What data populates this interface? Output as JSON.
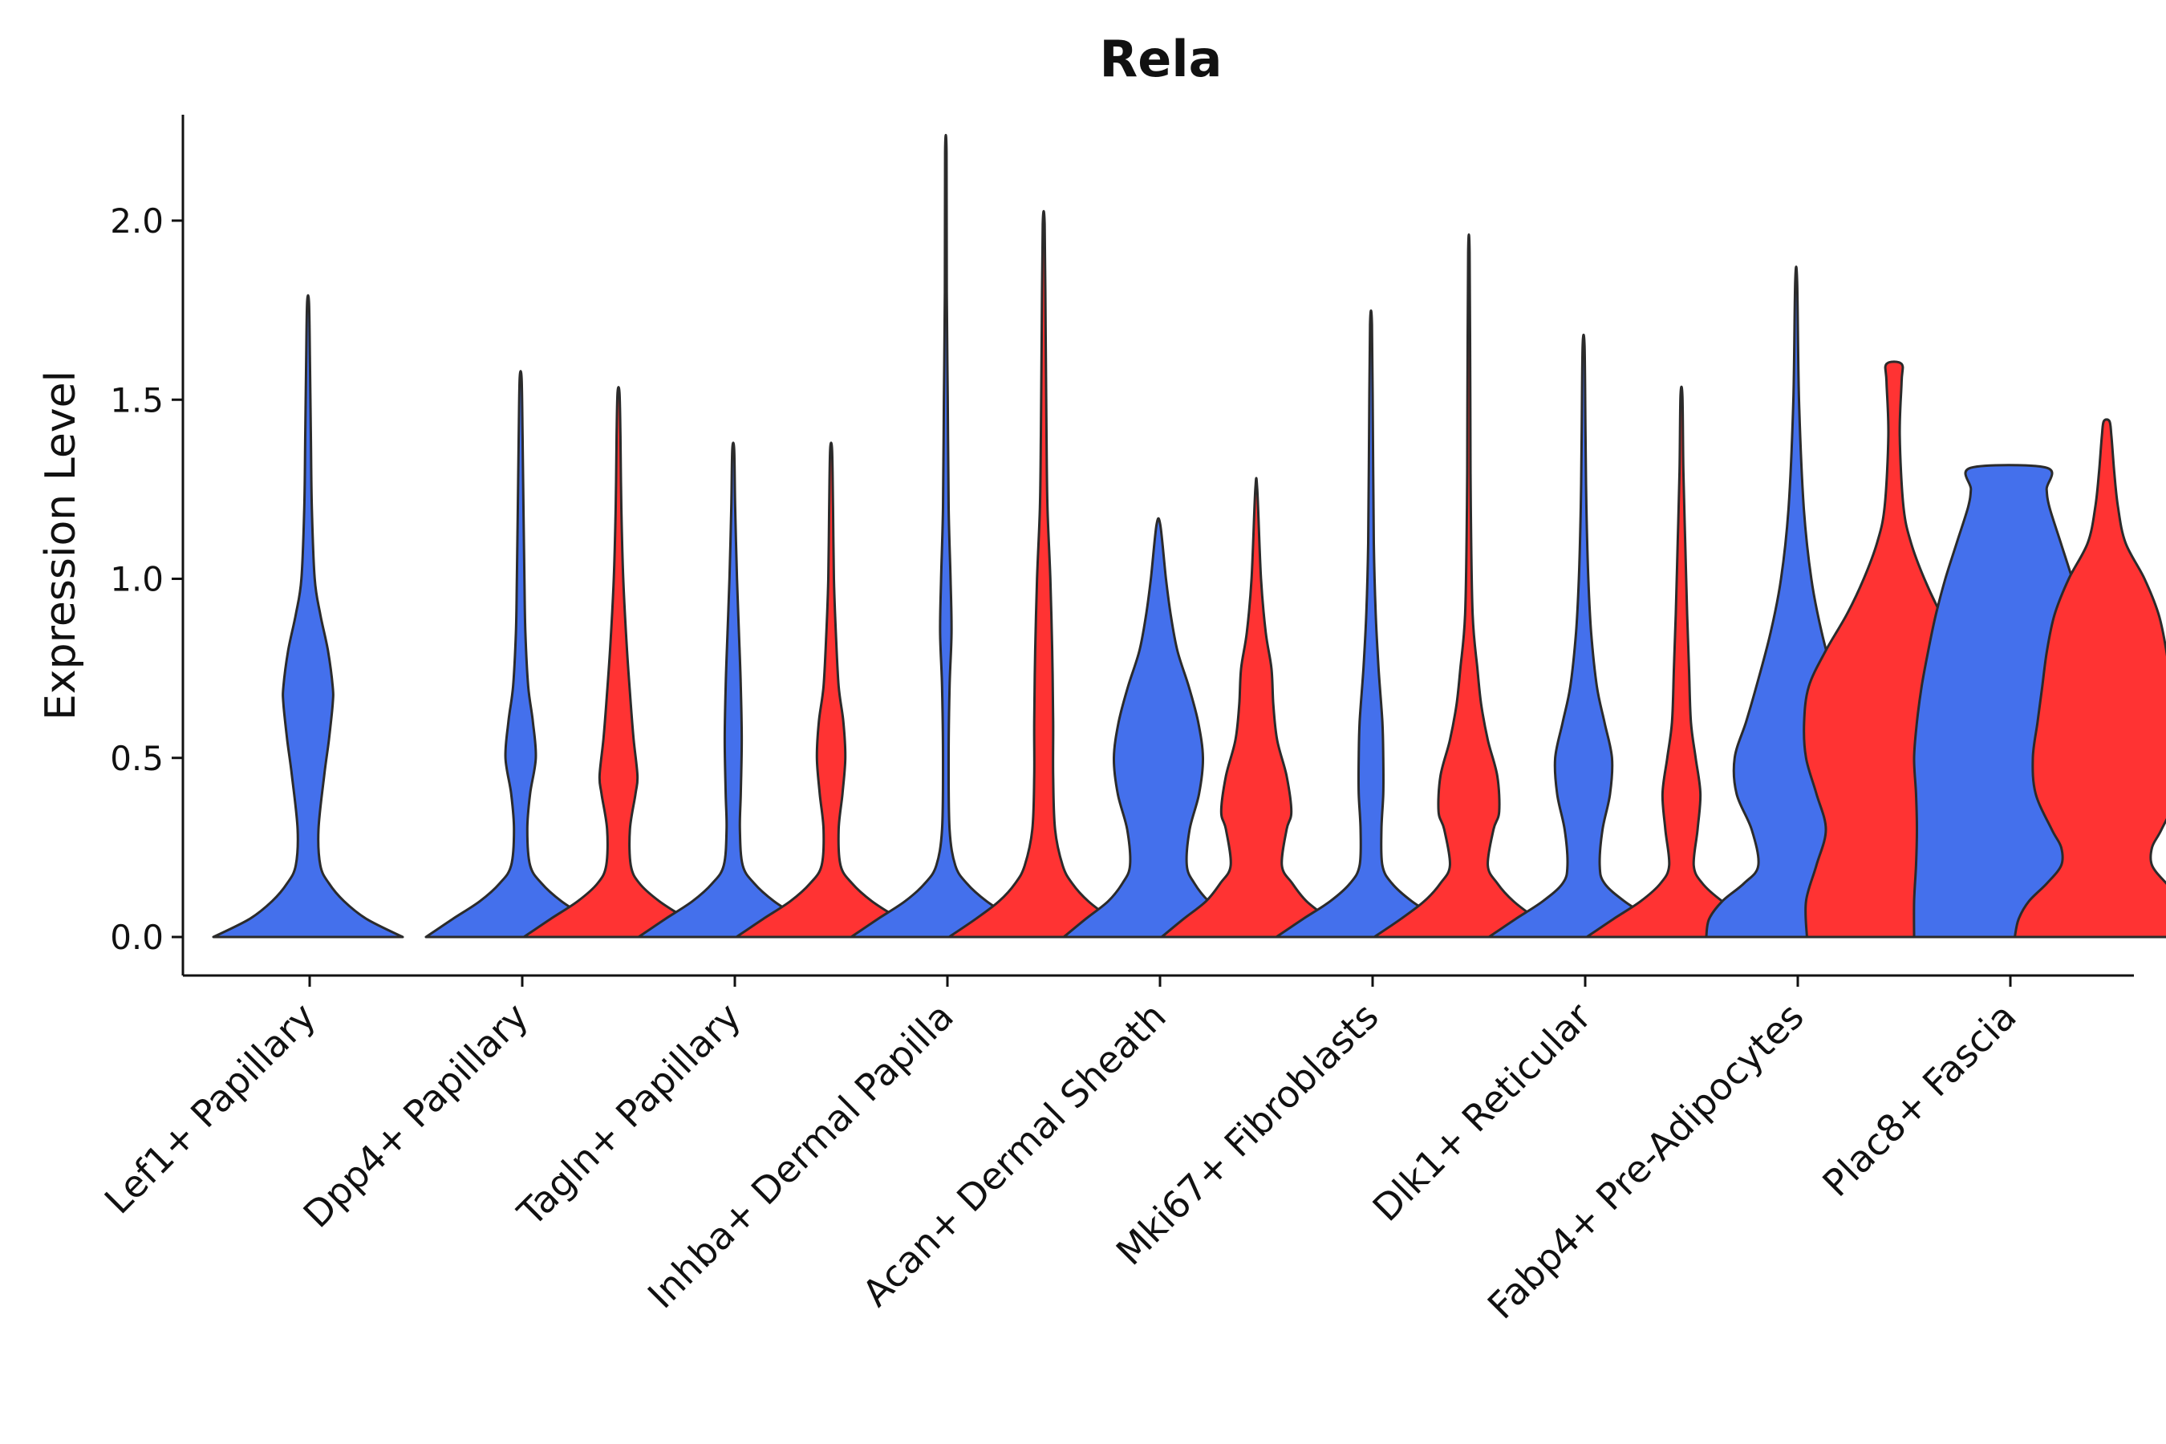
{
  "chart_data": {
    "type": "violin",
    "title": "Rela",
    "ylabel": "Expression Level",
    "xlabel": "",
    "ylim": [
      -0.11,
      2.3
    ],
    "yticks": [
      "0.0",
      "0.5",
      "1.0",
      "1.5",
      "2.0"
    ],
    "colors": {
      "group1": "#4470EC",
      "group2": "#FF3333"
    },
    "categories": [
      "Lef1+ Papillary",
      "Dpp4+ Papillary",
      "Tagln+ Papillary",
      "Inhba+ Dermal Papilla",
      "Acan+ Dermal Sheath",
      "Mki67+ Fibroblasts",
      "Dlk1+ Reticular",
      "Fabp4+ Pre-Adipocytes",
      "Plac8+ Fascia"
    ],
    "violins": [
      {
        "category": "Lef1+ Papillary",
        "group": "group1",
        "max": 1.77,
        "profile": [
          [
            0.0,
            1.0
          ],
          [
            0.05,
            0.62
          ],
          [
            0.1,
            0.38
          ],
          [
            0.15,
            0.22
          ],
          [
            0.2,
            0.13
          ],
          [
            0.3,
            0.11
          ],
          [
            0.45,
            0.17
          ],
          [
            0.55,
            0.22
          ],
          [
            0.65,
            0.26
          ],
          [
            0.7,
            0.26
          ],
          [
            0.8,
            0.21
          ],
          [
            0.9,
            0.13
          ],
          [
            1.0,
            0.07
          ],
          [
            1.2,
            0.04
          ],
          [
            1.4,
            0.03
          ],
          [
            1.6,
            0.02
          ],
          [
            1.77,
            0.01
          ]
        ]
      },
      {
        "category": "Dpp4+ Papillary",
        "group": "group1",
        "max": 1.56,
        "profile": [
          [
            0.0,
            1.0
          ],
          [
            0.05,
            0.72
          ],
          [
            0.1,
            0.43
          ],
          [
            0.15,
            0.22
          ],
          [
            0.2,
            0.1
          ],
          [
            0.3,
            0.07
          ],
          [
            0.4,
            0.1
          ],
          [
            0.5,
            0.16
          ],
          [
            0.6,
            0.13
          ],
          [
            0.7,
            0.08
          ],
          [
            0.85,
            0.05
          ],
          [
            1.0,
            0.04
          ],
          [
            1.2,
            0.03
          ],
          [
            1.4,
            0.02
          ],
          [
            1.56,
            0.01
          ]
        ]
      },
      {
        "category": "Dpp4+ Papillary",
        "group": "group2",
        "max": 1.52,
        "profile": [
          [
            0.0,
            1.0
          ],
          [
            0.05,
            0.72
          ],
          [
            0.1,
            0.43
          ],
          [
            0.15,
            0.22
          ],
          [
            0.2,
            0.13
          ],
          [
            0.3,
            0.12
          ],
          [
            0.4,
            0.18
          ],
          [
            0.45,
            0.2
          ],
          [
            0.55,
            0.16
          ],
          [
            0.65,
            0.13
          ],
          [
            0.8,
            0.09
          ],
          [
            1.0,
            0.05
          ],
          [
            1.2,
            0.03
          ],
          [
            1.4,
            0.02
          ],
          [
            1.52,
            0.01
          ]
        ]
      },
      {
        "category": "Tagln+ Papillary",
        "group": "group1",
        "max": 1.36,
        "profile": [
          [
            0.0,
            1.0
          ],
          [
            0.05,
            0.72
          ],
          [
            0.1,
            0.43
          ],
          [
            0.15,
            0.22
          ],
          [
            0.2,
            0.1
          ],
          [
            0.3,
            0.07
          ],
          [
            0.4,
            0.08
          ],
          [
            0.55,
            0.09
          ],
          [
            0.7,
            0.08
          ],
          [
            0.85,
            0.06
          ],
          [
            1.0,
            0.04
          ],
          [
            1.2,
            0.02
          ],
          [
            1.36,
            0.01
          ]
        ]
      },
      {
        "category": "Tagln+ Papillary",
        "group": "group2",
        "max": 1.36,
        "profile": [
          [
            0.0,
            1.0
          ],
          [
            0.05,
            0.72
          ],
          [
            0.1,
            0.43
          ],
          [
            0.15,
            0.22
          ],
          [
            0.2,
            0.1
          ],
          [
            0.3,
            0.08
          ],
          [
            0.4,
            0.12
          ],
          [
            0.5,
            0.15
          ],
          [
            0.6,
            0.13
          ],
          [
            0.7,
            0.08
          ],
          [
            0.85,
            0.05
          ],
          [
            1.0,
            0.03
          ],
          [
            1.2,
            0.02
          ],
          [
            1.36,
            0.01
          ]
        ]
      },
      {
        "category": "Inhba+ Dermal Papilla",
        "group": "group1",
        "max": 2.19,
        "profile": [
          [
            0.0,
            1.0
          ],
          [
            0.05,
            0.72
          ],
          [
            0.1,
            0.43
          ],
          [
            0.15,
            0.22
          ],
          [
            0.2,
            0.1
          ],
          [
            0.3,
            0.04
          ],
          [
            0.5,
            0.03
          ],
          [
            0.7,
            0.04
          ],
          [
            0.85,
            0.06
          ],
          [
            1.0,
            0.05
          ],
          [
            1.2,
            0.03
          ],
          [
            1.5,
            0.02
          ],
          [
            1.8,
            0.01
          ],
          [
            2.19,
            0.008
          ]
        ]
      },
      {
        "category": "Inhba+ Dermal Papilla",
        "group": "group2",
        "max": 1.99,
        "profile": [
          [
            0.0,
            1.0
          ],
          [
            0.05,
            0.72
          ],
          [
            0.1,
            0.47
          ],
          [
            0.15,
            0.3
          ],
          [
            0.2,
            0.2
          ],
          [
            0.3,
            0.12
          ],
          [
            0.45,
            0.1
          ],
          [
            0.6,
            0.1
          ],
          [
            0.8,
            0.09
          ],
          [
            1.0,
            0.07
          ],
          [
            1.2,
            0.04
          ],
          [
            1.4,
            0.03
          ],
          [
            1.7,
            0.02
          ],
          [
            1.99,
            0.01
          ]
        ]
      },
      {
        "category": "Acan+ Dermal Sheath",
        "group": "group1",
        "max": 1.15,
        "profile": [
          [
            0.0,
            1.0
          ],
          [
            0.05,
            0.77
          ],
          [
            0.1,
            0.53
          ],
          [
            0.15,
            0.38
          ],
          [
            0.2,
            0.3
          ],
          [
            0.3,
            0.33
          ],
          [
            0.4,
            0.43
          ],
          [
            0.5,
            0.47
          ],
          [
            0.6,
            0.42
          ],
          [
            0.7,
            0.32
          ],
          [
            0.8,
            0.2
          ],
          [
            0.9,
            0.13
          ],
          [
            1.0,
            0.08
          ],
          [
            1.15,
            0.02
          ]
        ]
      },
      {
        "category": "Acan+ Dermal Sheath",
        "group": "group2",
        "max": 1.25,
        "profile": [
          [
            0.0,
            1.0
          ],
          [
            0.05,
            0.77
          ],
          [
            0.1,
            0.53
          ],
          [
            0.15,
            0.38
          ],
          [
            0.2,
            0.27
          ],
          [
            0.3,
            0.32
          ],
          [
            0.35,
            0.37
          ],
          [
            0.45,
            0.32
          ],
          [
            0.55,
            0.22
          ],
          [
            0.65,
            0.18
          ],
          [
            0.75,
            0.16
          ],
          [
            0.85,
            0.1
          ],
          [
            1.0,
            0.05
          ],
          [
            1.25,
            0.01
          ]
        ]
      },
      {
        "category": "Mki67+ Fibroblasts",
        "group": "group1",
        "max": 1.71,
        "profile": [
          [
            0.0,
            1.0
          ],
          [
            0.05,
            0.72
          ],
          [
            0.1,
            0.43
          ],
          [
            0.15,
            0.22
          ],
          [
            0.2,
            0.12
          ],
          [
            0.3,
            0.11
          ],
          [
            0.4,
            0.13
          ],
          [
            0.5,
            0.13
          ],
          [
            0.6,
            0.12
          ],
          [
            0.75,
            0.08
          ],
          [
            0.9,
            0.05
          ],
          [
            1.1,
            0.03
          ],
          [
            1.4,
            0.02
          ],
          [
            1.71,
            0.01
          ]
        ]
      },
      {
        "category": "Mki67+ Fibroblasts",
        "group": "group2",
        "max": 1.91,
        "profile": [
          [
            0.0,
            1.0
          ],
          [
            0.05,
            0.72
          ],
          [
            0.1,
            0.47
          ],
          [
            0.15,
            0.3
          ],
          [
            0.2,
            0.2
          ],
          [
            0.3,
            0.26
          ],
          [
            0.35,
            0.32
          ],
          [
            0.45,
            0.3
          ],
          [
            0.55,
            0.2
          ],
          [
            0.65,
            0.13
          ],
          [
            0.75,
            0.09
          ],
          [
            0.9,
            0.04
          ],
          [
            1.2,
            0.02
          ],
          [
            1.5,
            0.015
          ],
          [
            1.91,
            0.008
          ]
        ]
      },
      {
        "category": "Dlk1+ Reticular",
        "group": "group1",
        "max": 1.65,
        "profile": [
          [
            0.0,
            1.0
          ],
          [
            0.05,
            0.72
          ],
          [
            0.1,
            0.43
          ],
          [
            0.15,
            0.22
          ],
          [
            0.2,
            0.17
          ],
          [
            0.3,
            0.2
          ],
          [
            0.4,
            0.28
          ],
          [
            0.5,
            0.3
          ],
          [
            0.6,
            0.22
          ],
          [
            0.7,
            0.14
          ],
          [
            0.85,
            0.08
          ],
          [
            1.0,
            0.05
          ],
          [
            1.2,
            0.03
          ],
          [
            1.4,
            0.02
          ],
          [
            1.65,
            0.01
          ]
        ]
      },
      {
        "category": "Dlk1+ Reticular",
        "group": "group2",
        "max": 1.51,
        "profile": [
          [
            0.0,
            1.0
          ],
          [
            0.05,
            0.72
          ],
          [
            0.1,
            0.43
          ],
          [
            0.15,
            0.22
          ],
          [
            0.2,
            0.13
          ],
          [
            0.3,
            0.17
          ],
          [
            0.4,
            0.2
          ],
          [
            0.5,
            0.15
          ],
          [
            0.6,
            0.1
          ],
          [
            0.75,
            0.08
          ],
          [
            0.9,
            0.06
          ],
          [
            1.1,
            0.04
          ],
          [
            1.3,
            0.02
          ],
          [
            1.51,
            0.01
          ]
        ]
      },
      {
        "category": "Fabp4+ Pre-Adipocytes",
        "group": "group1",
        "max": 1.83,
        "profile": [
          [
            0.0,
            0.95
          ],
          [
            0.05,
            0.92
          ],
          [
            0.1,
            0.78
          ],
          [
            0.15,
            0.55
          ],
          [
            0.2,
            0.4
          ],
          [
            0.3,
            0.47
          ],
          [
            0.4,
            0.63
          ],
          [
            0.5,
            0.65
          ],
          [
            0.6,
            0.53
          ],
          [
            0.7,
            0.42
          ],
          [
            0.85,
            0.27
          ],
          [
            1.0,
            0.16
          ],
          [
            1.2,
            0.08
          ],
          [
            1.5,
            0.03
          ],
          [
            1.83,
            0.01
          ]
        ]
      },
      {
        "category": "Fabp4+ Pre-Adipocytes",
        "group": "group2",
        "max": 1.6,
        "profile": [
          [
            0.0,
            0.92
          ],
          [
            0.1,
            0.93
          ],
          [
            0.2,
            0.82
          ],
          [
            0.3,
            0.72
          ],
          [
            0.4,
            0.82
          ],
          [
            0.5,
            0.93
          ],
          [
            0.6,
            0.95
          ],
          [
            0.7,
            0.9
          ],
          [
            0.8,
            0.72
          ],
          [
            0.9,
            0.5
          ],
          [
            1.0,
            0.32
          ],
          [
            1.1,
            0.18
          ],
          [
            1.2,
            0.1
          ],
          [
            1.4,
            0.06
          ],
          [
            1.55,
            0.08
          ],
          [
            1.6,
            0.08
          ]
        ]
      },
      {
        "category": "Plac8+ Fascia",
        "group": "group1",
        "max": 1.31,
        "profile": [
          [
            0.0,
            1.0
          ],
          [
            0.1,
            1.0
          ],
          [
            0.2,
            0.98
          ],
          [
            0.3,
            0.97
          ],
          [
            0.4,
            0.98
          ],
          [
            0.5,
            1.0
          ],
          [
            0.6,
            0.97
          ],
          [
            0.7,
            0.92
          ],
          [
            0.8,
            0.85
          ],
          [
            0.9,
            0.77
          ],
          [
            1.0,
            0.67
          ],
          [
            1.1,
            0.55
          ],
          [
            1.2,
            0.43
          ],
          [
            1.25,
            0.4
          ],
          [
            1.31,
            0.4
          ]
        ]
      },
      {
        "category": "Plac8+ Fascia",
        "group": "group2",
        "max": 1.44,
        "profile": [
          [
            0.0,
            0.97
          ],
          [
            0.05,
            0.93
          ],
          [
            0.1,
            0.82
          ],
          [
            0.15,
            0.63
          ],
          [
            0.2,
            0.48
          ],
          [
            0.25,
            0.48
          ],
          [
            0.3,
            0.58
          ],
          [
            0.4,
            0.75
          ],
          [
            0.5,
            0.78
          ],
          [
            0.6,
            0.73
          ],
          [
            0.7,
            0.68
          ],
          [
            0.8,
            0.63
          ],
          [
            0.9,
            0.55
          ],
          [
            1.0,
            0.4
          ],
          [
            1.1,
            0.2
          ],
          [
            1.2,
            0.12
          ],
          [
            1.3,
            0.08
          ],
          [
            1.4,
            0.05
          ],
          [
            1.44,
            0.03
          ]
        ]
      }
    ]
  }
}
